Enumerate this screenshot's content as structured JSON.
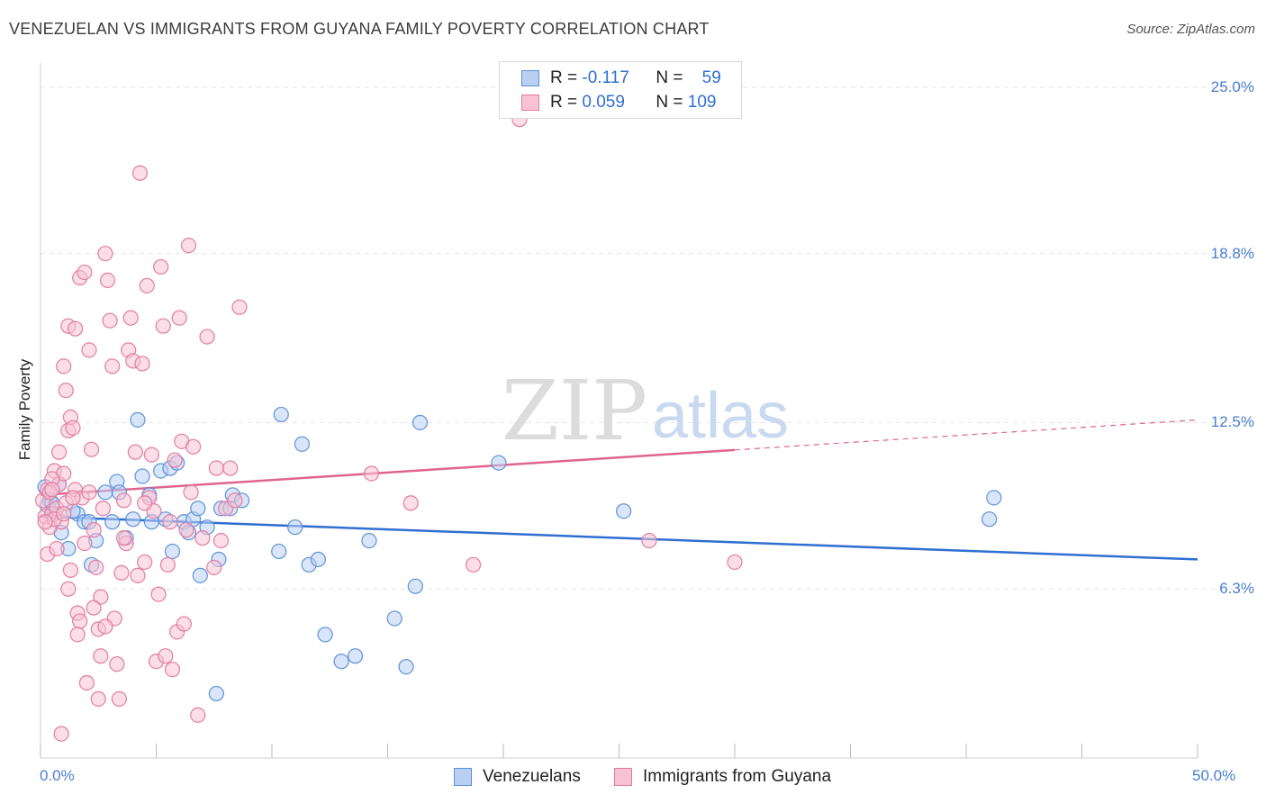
{
  "title": "VENEZUELAN VS IMMIGRANTS FROM GUYANA FAMILY POVERTY CORRELATION CHART",
  "source": "Source: ZipAtlas.com",
  "watermark": {
    "zip": "ZIP",
    "atlas": "atlas"
  },
  "colors": {
    "blue": "#5b8fd6",
    "blue_fill": "#b9d0f2",
    "blue_line": "#2f6fd1",
    "pink": "#e07aa0",
    "pink_fill": "#f7c3d4",
    "pink_line": "#e0648f",
    "tick_text": "#4a7fd0"
  },
  "legend": {
    "r_label": "R =",
    "n_label": "N =",
    "rows": [
      {
        "r": "-0.117",
        "n": "59"
      },
      {
        "r": "0.059",
        "n": "109"
      }
    ]
  },
  "chart_data": {
    "type": "scatter",
    "title": "VENEZUELAN VS IMMIGRANTS FROM GUYANA FAMILY POVERTY CORRELATION CHART",
    "xlabel": "",
    "ylabel": "Family Poverty",
    "xlim": [
      0,
      50
    ],
    "ylim": [
      0,
      25.9
    ],
    "x_tick_labels": [
      "0.0%",
      "50.0%"
    ],
    "y_ticks": [
      6.3,
      12.5,
      18.8,
      25.0
    ],
    "y_tick_labels": [
      "6.3%",
      "12.5%",
      "18.8%",
      "25.0%"
    ],
    "grid": true,
    "series": [
      {
        "name": "Venezuelans",
        "color": "#5b8fd6",
        "trend": {
          "x0": 0,
          "y0": 9.0,
          "x1": 50,
          "y1": 7.4,
          "dashed_from": null
        },
        "points": [
          [
            0.2,
            10.1
          ],
          [
            0.4,
            9.6
          ],
          [
            0.6,
            9.1
          ],
          [
            0.8,
            10.2
          ],
          [
            0.3,
            9.4
          ],
          [
            0.5,
            9.5
          ],
          [
            0.9,
            8.4
          ],
          [
            1.2,
            7.8
          ],
          [
            1.6,
            9.1
          ],
          [
            1.9,
            8.8
          ],
          [
            2.1,
            8.8
          ],
          [
            2.2,
            7.2
          ],
          [
            2.4,
            8.1
          ],
          [
            2.8,
            9.9
          ],
          [
            3.1,
            8.8
          ],
          [
            3.3,
            10.3
          ],
          [
            3.4,
            9.9
          ],
          [
            3.7,
            8.2
          ],
          [
            4.0,
            8.9
          ],
          [
            4.2,
            12.6
          ],
          [
            4.4,
            10.5
          ],
          [
            4.7,
            9.8
          ],
          [
            4.8,
            8.8
          ],
          [
            5.2,
            10.7
          ],
          [
            5.4,
            8.9
          ],
          [
            5.6,
            10.8
          ],
          [
            5.7,
            7.7
          ],
          [
            5.9,
            11.0
          ],
          [
            6.2,
            8.8
          ],
          [
            6.4,
            8.4
          ],
          [
            6.6,
            8.9
          ],
          [
            6.8,
            9.3
          ],
          [
            6.9,
            6.8
          ],
          [
            7.2,
            8.6
          ],
          [
            7.6,
            2.4
          ],
          [
            7.7,
            7.4
          ],
          [
            7.8,
            9.3
          ],
          [
            8.2,
            9.3
          ],
          [
            8.3,
            9.8
          ],
          [
            8.7,
            9.6
          ],
          [
            10.3,
            7.7
          ],
          [
            10.4,
            12.8
          ],
          [
            11.0,
            8.6
          ],
          [
            11.3,
            11.7
          ],
          [
            11.6,
            7.2
          ],
          [
            12.0,
            7.4
          ],
          [
            12.3,
            4.6
          ],
          [
            13.0,
            3.6
          ],
          [
            13.6,
            3.8
          ],
          [
            14.2,
            8.1
          ],
          [
            15.3,
            5.2
          ],
          [
            15.8,
            3.4
          ],
          [
            16.2,
            6.4
          ],
          [
            16.4,
            12.5
          ],
          [
            19.8,
            11.0
          ],
          [
            25.2,
            9.2
          ],
          [
            41.0,
            8.9
          ],
          [
            41.2,
            9.7
          ],
          [
            1.4,
            9.2
          ]
        ]
      },
      {
        "name": "Immigrants from Guyana",
        "color": "#e07aa0",
        "trend": {
          "x0": 0,
          "y0": 9.8,
          "x1": 50,
          "y1": 12.6,
          "dashed_from": 30
        },
        "points": [
          [
            0.1,
            9.6
          ],
          [
            0.2,
            9.0
          ],
          [
            0.3,
            10.0
          ],
          [
            0.4,
            8.6
          ],
          [
            0.5,
            9.1
          ],
          [
            0.6,
            10.7
          ],
          [
            0.7,
            9.3
          ],
          [
            0.8,
            10.2
          ],
          [
            0.9,
            8.8
          ],
          [
            1.0,
            10.6
          ],
          [
            1.1,
            9.5
          ],
          [
            0.3,
            7.6
          ],
          [
            0.7,
            7.8
          ],
          [
            0.4,
            9.9
          ],
          [
            0.5,
            10.4
          ],
          [
            0.6,
            8.9
          ],
          [
            1.2,
            12.2
          ],
          [
            1.3,
            12.7
          ],
          [
            1.4,
            12.3
          ],
          [
            1.1,
            13.7
          ],
          [
            1.0,
            14.6
          ],
          [
            1.5,
            10.0
          ],
          [
            1.3,
            7.0
          ],
          [
            1.2,
            6.3
          ],
          [
            1.6,
            5.4
          ],
          [
            1.7,
            5.1
          ],
          [
            1.6,
            4.6
          ],
          [
            1.8,
            9.7
          ],
          [
            1.9,
            8.0
          ],
          [
            2.0,
            2.8
          ],
          [
            2.1,
            15.2
          ],
          [
            2.2,
            11.5
          ],
          [
            2.3,
            8.5
          ],
          [
            2.4,
            7.1
          ],
          [
            2.5,
            4.8
          ],
          [
            2.5,
            2.2
          ],
          [
            2.6,
            6.0
          ],
          [
            2.7,
            9.3
          ],
          [
            2.8,
            18.8
          ],
          [
            2.9,
            17.8
          ],
          [
            3.0,
            16.3
          ],
          [
            3.1,
            14.6
          ],
          [
            3.2,
            5.2
          ],
          [
            3.3,
            3.5
          ],
          [
            3.4,
            2.2
          ],
          [
            3.5,
            6.9
          ],
          [
            3.6,
            9.6
          ],
          [
            3.7,
            8.0
          ],
          [
            3.8,
            15.2
          ],
          [
            3.9,
            16.4
          ],
          [
            4.0,
            14.8
          ],
          [
            4.1,
            11.4
          ],
          [
            4.2,
            6.8
          ],
          [
            4.3,
            21.8
          ],
          [
            4.4,
            14.7
          ],
          [
            4.5,
            7.3
          ],
          [
            4.6,
            17.6
          ],
          [
            4.7,
            9.7
          ],
          [
            4.8,
            11.3
          ],
          [
            4.9,
            9.2
          ],
          [
            5.0,
            3.6
          ],
          [
            5.1,
            6.1
          ],
          [
            5.2,
            18.3
          ],
          [
            5.3,
            16.1
          ],
          [
            5.4,
            3.8
          ],
          [
            5.5,
            7.2
          ],
          [
            5.6,
            8.8
          ],
          [
            5.7,
            3.3
          ],
          [
            5.8,
            11.1
          ],
          [
            5.9,
            4.7
          ],
          [
            6.0,
            16.4
          ],
          [
            6.1,
            11.8
          ],
          [
            6.2,
            5.0
          ],
          [
            6.3,
            8.5
          ],
          [
            6.4,
            19.1
          ],
          [
            6.5,
            9.9
          ],
          [
            6.6,
            11.6
          ],
          [
            6.8,
            1.6
          ],
          [
            7.0,
            8.2
          ],
          [
            7.2,
            15.7
          ],
          [
            7.5,
            7.1
          ],
          [
            7.6,
            10.8
          ],
          [
            7.8,
            8.1
          ],
          [
            8.0,
            9.3
          ],
          [
            8.2,
            10.8
          ],
          [
            8.4,
            9.6
          ],
          [
            8.6,
            16.8
          ],
          [
            0.9,
            0.9
          ],
          [
            1.2,
            16.1
          ],
          [
            1.5,
            16.0
          ],
          [
            1.7,
            17.9
          ],
          [
            1.9,
            18.1
          ],
          [
            2.1,
            9.9
          ],
          [
            2.3,
            5.6
          ],
          [
            2.6,
            3.8
          ],
          [
            2.8,
            4.9
          ],
          [
            3.6,
            8.2
          ],
          [
            4.5,
            9.5
          ],
          [
            14.3,
            10.6
          ],
          [
            16.0,
            9.5
          ],
          [
            18.7,
            7.2
          ],
          [
            26.3,
            8.1
          ],
          [
            30.0,
            7.3
          ],
          [
            20.7,
            23.8
          ],
          [
            0.8,
            11.4
          ],
          [
            0.2,
            8.8
          ],
          [
            1.0,
            9.1
          ],
          [
            1.4,
            9.7
          ],
          [
            0.5,
            10.0
          ]
        ]
      }
    ]
  },
  "bottom_legend": {
    "venezuelans": "Venezuelans",
    "guyana": "Immigrants from Guyana"
  }
}
